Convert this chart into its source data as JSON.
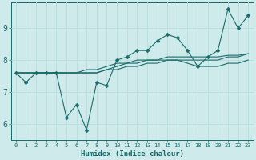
{
  "xlabel": "Humidex (Indice chaleur)",
  "ylabel": "",
  "bg_color": "#ceeaea",
  "line_color": "#1a6b6b",
  "grid_color": "#b8dede",
  "x_min": -0.5,
  "x_max": 23.5,
  "y_min": 5.5,
  "y_max": 9.8,
  "yticks": [
    6,
    7,
    8,
    9
  ],
  "xticks": [
    0,
    1,
    2,
    3,
    4,
    5,
    6,
    7,
    8,
    9,
    10,
    11,
    12,
    13,
    14,
    15,
    16,
    17,
    18,
    19,
    20,
    21,
    22,
    23
  ],
  "series": [
    [
      7.6,
      7.3,
      7.6,
      7.6,
      7.6,
      6.2,
      6.6,
      5.8,
      7.3,
      7.2,
      8.0,
      8.1,
      8.3,
      8.3,
      8.6,
      8.8,
      8.7,
      8.3,
      7.8,
      8.1,
      8.3,
      9.6,
      9.0,
      9.4
    ],
    [
      7.6,
      7.6,
      7.6,
      7.6,
      7.6,
      7.6,
      7.6,
      7.6,
      7.6,
      7.7,
      7.7,
      7.8,
      7.8,
      7.9,
      7.9,
      8.0,
      8.0,
      8.0,
      8.0,
      8.0,
      8.0,
      8.1,
      8.1,
      8.2
    ],
    [
      7.6,
      7.6,
      7.6,
      7.6,
      7.6,
      7.6,
      7.6,
      7.6,
      7.6,
      7.7,
      7.8,
      7.9,
      7.9,
      8.0,
      8.0,
      8.1,
      8.1,
      8.1,
      8.1,
      8.1,
      8.1,
      8.15,
      8.15,
      8.2
    ],
    [
      7.6,
      7.6,
      7.6,
      7.6,
      7.6,
      7.6,
      7.6,
      7.7,
      7.7,
      7.8,
      7.9,
      7.9,
      8.0,
      8.0,
      8.0,
      8.0,
      8.0,
      7.9,
      7.8,
      7.8,
      7.8,
      7.9,
      7.9,
      8.0
    ]
  ],
  "xlabel_fontsize": 6.5,
  "ylabel_fontsize": 7,
  "xtick_fontsize": 5.0,
  "ytick_fontsize": 7.0,
  "linewidth": 0.8,
  "markersize": 2.5
}
